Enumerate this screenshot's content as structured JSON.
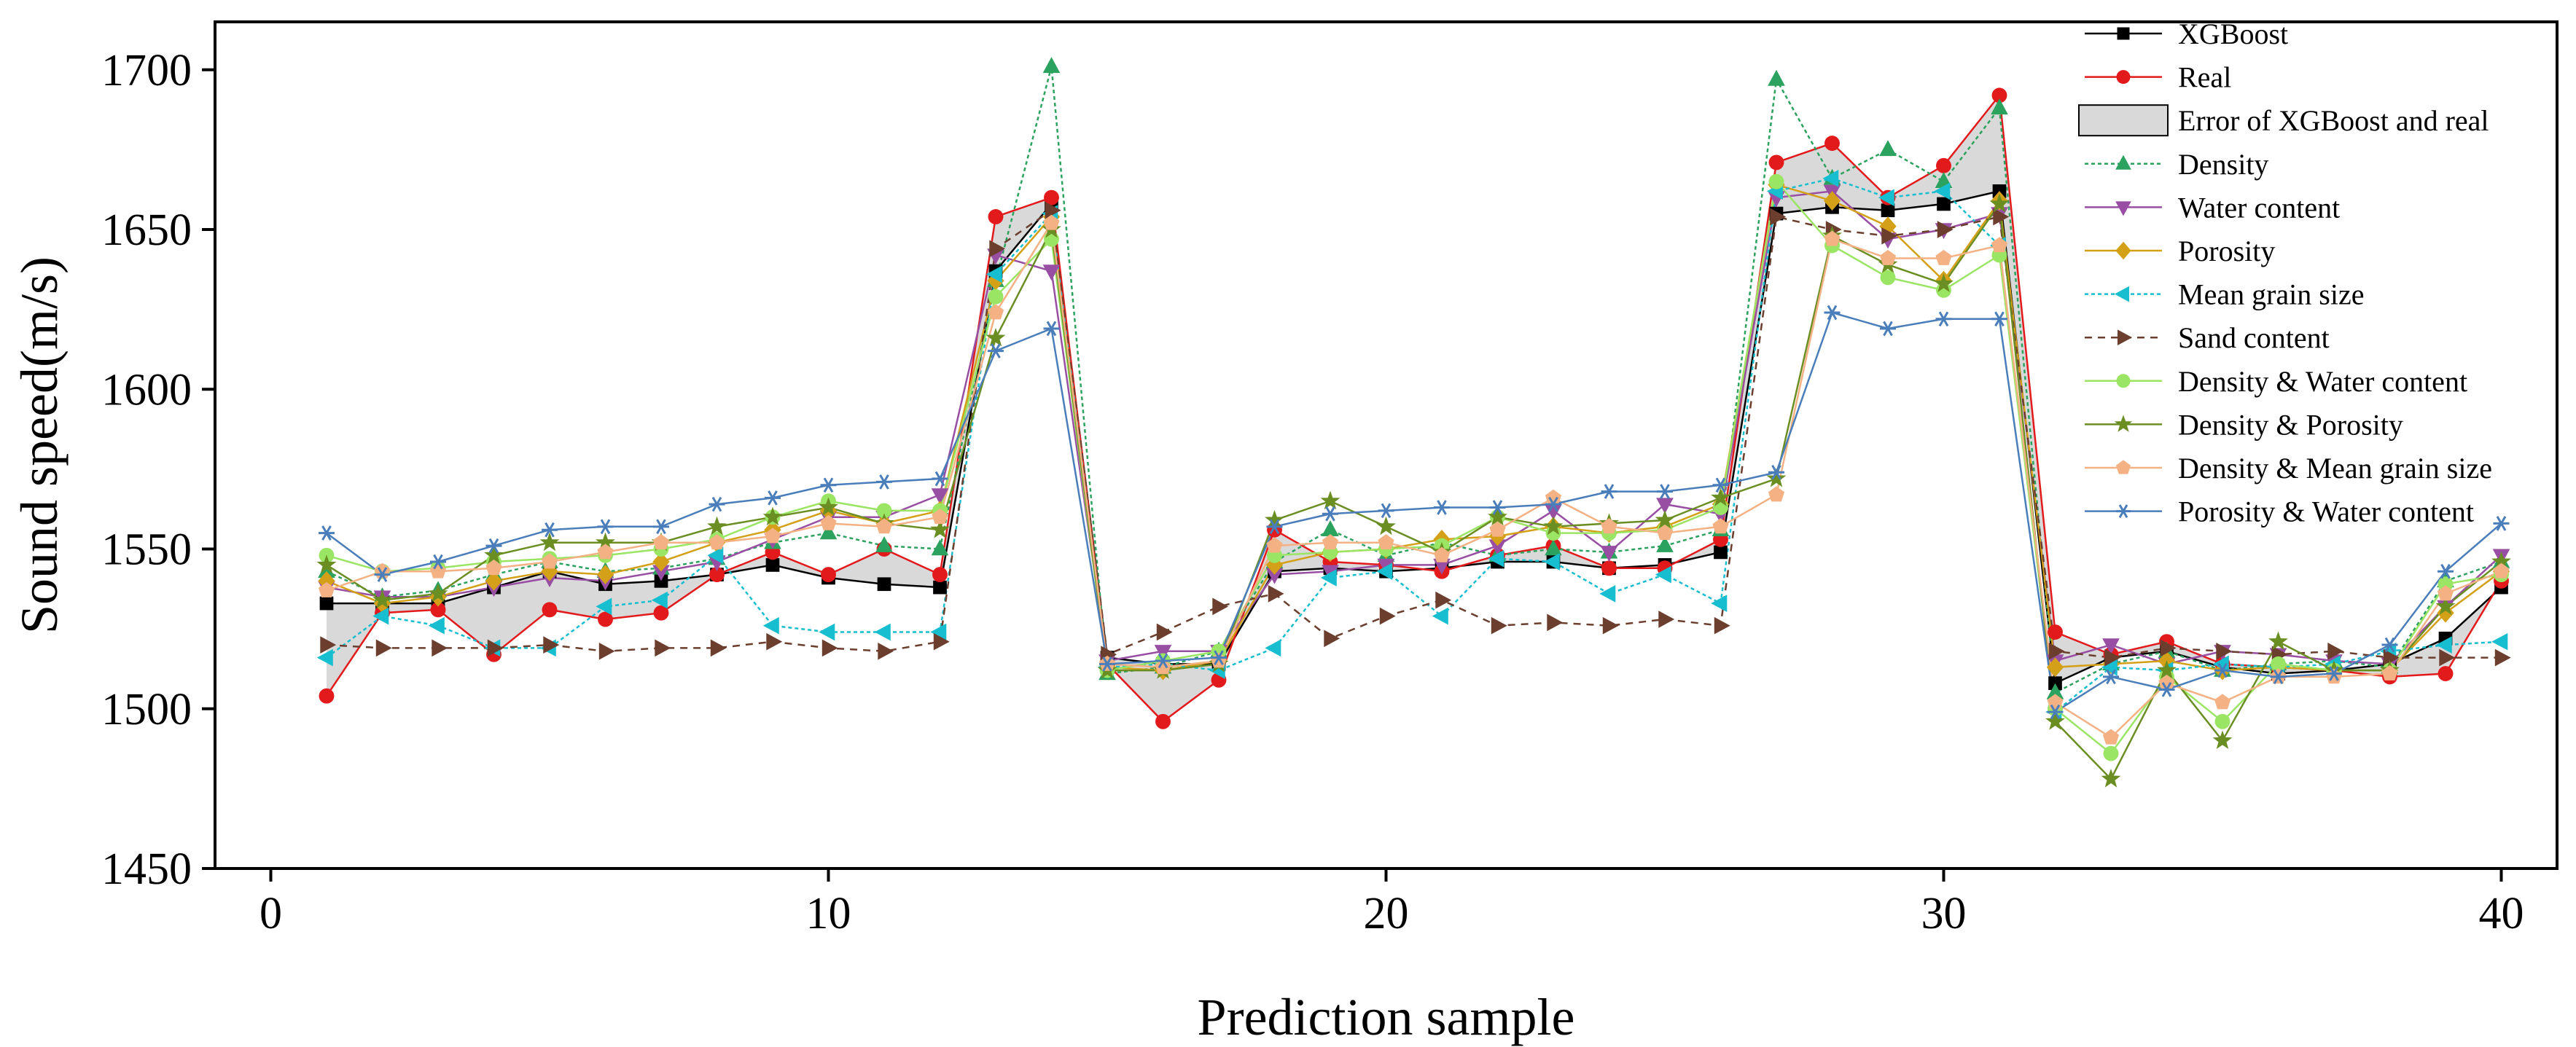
{
  "chart_data": {
    "type": "line",
    "title": "",
    "xlabel": "Prediction sample",
    "ylabel": "Sound speed(m/s)",
    "xlim": [
      -1,
      41
    ],
    "ylim": [
      1450,
      1715
    ],
    "xticks": [
      0,
      10,
      20,
      30,
      40
    ],
    "yticks": [
      1450,
      1500,
      1550,
      1600,
      1650,
      1700
    ],
    "grid": false,
    "legend_position": "top-right",
    "legend": [
      "XGBoost",
      "Real",
      "Error of XGBoost and real",
      "Density",
      "Water content",
      "Porosity",
      "Mean grain size",
      "Sand content",
      "Density & Water content",
      "Density & Porosity",
      "Density & Mean grain size",
      "Porosity & Water content"
    ],
    "x": [
      1,
      2,
      3,
      4,
      5,
      6,
      7,
      8,
      9,
      10,
      11,
      12,
      13,
      14,
      15,
      16,
      17,
      18,
      19,
      20,
      21,
      22,
      23,
      24,
      25,
      26,
      27,
      28,
      29,
      30,
      31,
      32,
      33,
      34,
      35,
      36,
      37,
      38,
      39,
      40
    ],
    "error_band": {
      "label": "Error of XGBoost and real",
      "between": [
        "XGBoost",
        "Real"
      ],
      "fill": "#d9d9d9"
    },
    "series": [
      {
        "name": "XGBoost",
        "color": "#000000",
        "marker": "square",
        "dash": "none",
        "values": [
          1533,
          1533,
          1533,
          1538,
          1543,
          1539,
          1540,
          1542,
          1545,
          1541,
          1539,
          1538,
          1637,
          1658,
          1516,
          1514,
          1514,
          1543,
          1544,
          1543,
          1544,
          1546,
          1546,
          1544,
          1545,
          1549,
          1655,
          1657,
          1656,
          1658,
          1662,
          1508,
          1516,
          1518,
          1513,
          1511,
          1512,
          1514,
          1522,
          1538
        ]
      },
      {
        "name": "Real",
        "color": "#e31a1c",
        "marker": "circle",
        "dash": "none",
        "values": [
          1504,
          1530,
          1531,
          1517,
          1531,
          1528,
          1530,
          1542,
          1549,
          1542,
          1550,
          1542,
          1654,
          1660,
          1514,
          1496,
          1509,
          1556,
          1546,
          1545,
          1543,
          1548,
          1551,
          1544,
          1544,
          1553,
          1671,
          1677,
          1660,
          1670,
          1692,
          1524,
          1517,
          1521,
          1514,
          1513,
          1512,
          1510,
          1511,
          1540
        ]
      },
      {
        "name": "Density",
        "color": "#2ca25f",
        "marker": "triangle-up",
        "dash": "5,4",
        "values": [
          1543,
          1535,
          1537,
          1542,
          1546,
          1543,
          1544,
          1547,
          1552,
          1555,
          1551,
          1550,
          1634,
          1701,
          1511,
          1513,
          1518,
          1546,
          1556,
          1548,
          1552,
          1548,
          1550,
          1549,
          1551,
          1556,
          1697,
          1666,
          1675,
          1665,
          1688,
          1505,
          1514,
          1518,
          1512,
          1514,
          1515,
          1513,
          1540,
          1546
        ]
      },
      {
        "name": "Water content",
        "color": "#984ea3",
        "marker": "triangle-down",
        "dash": "none",
        "values": [
          1538,
          1535,
          1535,
          1538,
          1541,
          1540,
          1543,
          1546,
          1553,
          1560,
          1560,
          1567,
          1642,
          1637,
          1515,
          1518,
          1518,
          1542,
          1543,
          1545,
          1545,
          1551,
          1562,
          1549,
          1564,
          1561,
          1660,
          1662,
          1647,
          1650,
          1655,
          1515,
          1520,
          1514,
          1518,
          1517,
          1515,
          1514,
          1532,
          1548
        ]
      },
      {
        "name": "Porosity",
        "color": "#d4a017",
        "marker": "diamond",
        "dash": "none",
        "values": [
          1540,
          1533,
          1535,
          1540,
          1543,
          1542,
          1546,
          1552,
          1556,
          1562,
          1558,
          1562,
          1634,
          1654,
          1513,
          1512,
          1515,
          1545,
          1549,
          1550,
          1553,
          1554,
          1557,
          1555,
          1557,
          1564,
          1664,
          1659,
          1651,
          1634,
          1659,
          1513,
          1514,
          1515,
          1512,
          1513,
          1512,
          1512,
          1530,
          1543
        ]
      },
      {
        "name": "Mean grain size",
        "color": "#17becf",
        "marker": "triangle-left",
        "dash": "5,4",
        "values": [
          1516,
          1529,
          1526,
          1519,
          1519,
          1532,
          1534,
          1548,
          1526,
          1524,
          1524,
          1524,
          1636,
          1655,
          1513,
          1514,
          1512,
          1519,
          1541,
          1543,
          1529,
          1547,
          1546,
          1536,
          1542,
          1533,
          1662,
          1666,
          1660,
          1662,
          1645,
          1499,
          1513,
          1512,
          1514,
          1513,
          1514,
          1518,
          1520,
          1521
        ]
      },
      {
        "name": "Sand content",
        "color": "#6b3e2e",
        "marker": "triangle-right",
        "dash": "10,8",
        "values": [
          1520,
          1519,
          1519,
          1519,
          1520,
          1518,
          1519,
          1519,
          1521,
          1519,
          1518,
          1521,
          1644,
          1656,
          1517,
          1524,
          1532,
          1536,
          1522,
          1529,
          1534,
          1526,
          1527,
          1526,
          1528,
          1526,
          1654,
          1650,
          1648,
          1650,
          1654,
          1518,
          1516,
          1519,
          1518,
          1517,
          1518,
          1516,
          1516,
          1516
        ]
      },
      {
        "name": "Density & Water content",
        "color": "#9be564",
        "marker": "circle",
        "dash": "none",
        "values": [
          1548,
          1543,
          1544,
          1546,
          1547,
          1548,
          1550,
          1553,
          1560,
          1565,
          1562,
          1562,
          1629,
          1647,
          1512,
          1515,
          1518,
          1548,
          1549,
          1550,
          1551,
          1560,
          1555,
          1555,
          1556,
          1563,
          1665,
          1645,
          1635,
          1631,
          1642,
          1500,
          1486,
          1510,
          1496,
          1514,
          1512,
          1512,
          1539,
          1542
        ]
      },
      {
        "name": "Density & Porosity",
        "color": "#6b8e23",
        "marker": "star",
        "dash": "none",
        "values": [
          1545,
          1534,
          1536,
          1548,
          1552,
          1552,
          1552,
          1557,
          1560,
          1563,
          1558,
          1556,
          1616,
          1650,
          1512,
          1512,
          1514,
          1559,
          1565,
          1557,
          1549,
          1560,
          1557,
          1558,
          1559,
          1566,
          1572,
          1648,
          1639,
          1633,
          1658,
          1496,
          1478,
          1512,
          1490,
          1521,
          1512,
          1512,
          1532,
          1546
        ]
      },
      {
        "name": "Density & Mean grain size",
        "color": "#f4b183",
        "marker": "pentagon",
        "dash": "none",
        "values": [
          1537,
          1543,
          1543,
          1544,
          1546,
          1549,
          1552,
          1552,
          1554,
          1558,
          1557,
          1560,
          1624,
          1652,
          1514,
          1513,
          1515,
          1551,
          1552,
          1552,
          1548,
          1556,
          1566,
          1557,
          1555,
          1557,
          1567,
          1647,
          1641,
          1641,
          1645,
          1502,
          1491,
          1508,
          1502,
          1510,
          1510,
          1511,
          1536,
          1543
        ]
      },
      {
        "name": "Porosity & Water content",
        "color": "#4a7ebb",
        "marker": "asterisk",
        "dash": "none",
        "values": [
          1555,
          1542,
          1546,
          1551,
          1556,
          1557,
          1557,
          1564,
          1566,
          1570,
          1571,
          1572,
          1612,
          1619,
          1514,
          1515,
          1516,
          1557,
          1561,
          1562,
          1563,
          1563,
          1564,
          1568,
          1568,
          1570,
          1574,
          1624,
          1619,
          1622,
          1622,
          1499,
          1510,
          1506,
          1512,
          1510,
          1511,
          1520,
          1543,
          1558
        ]
      }
    ]
  }
}
